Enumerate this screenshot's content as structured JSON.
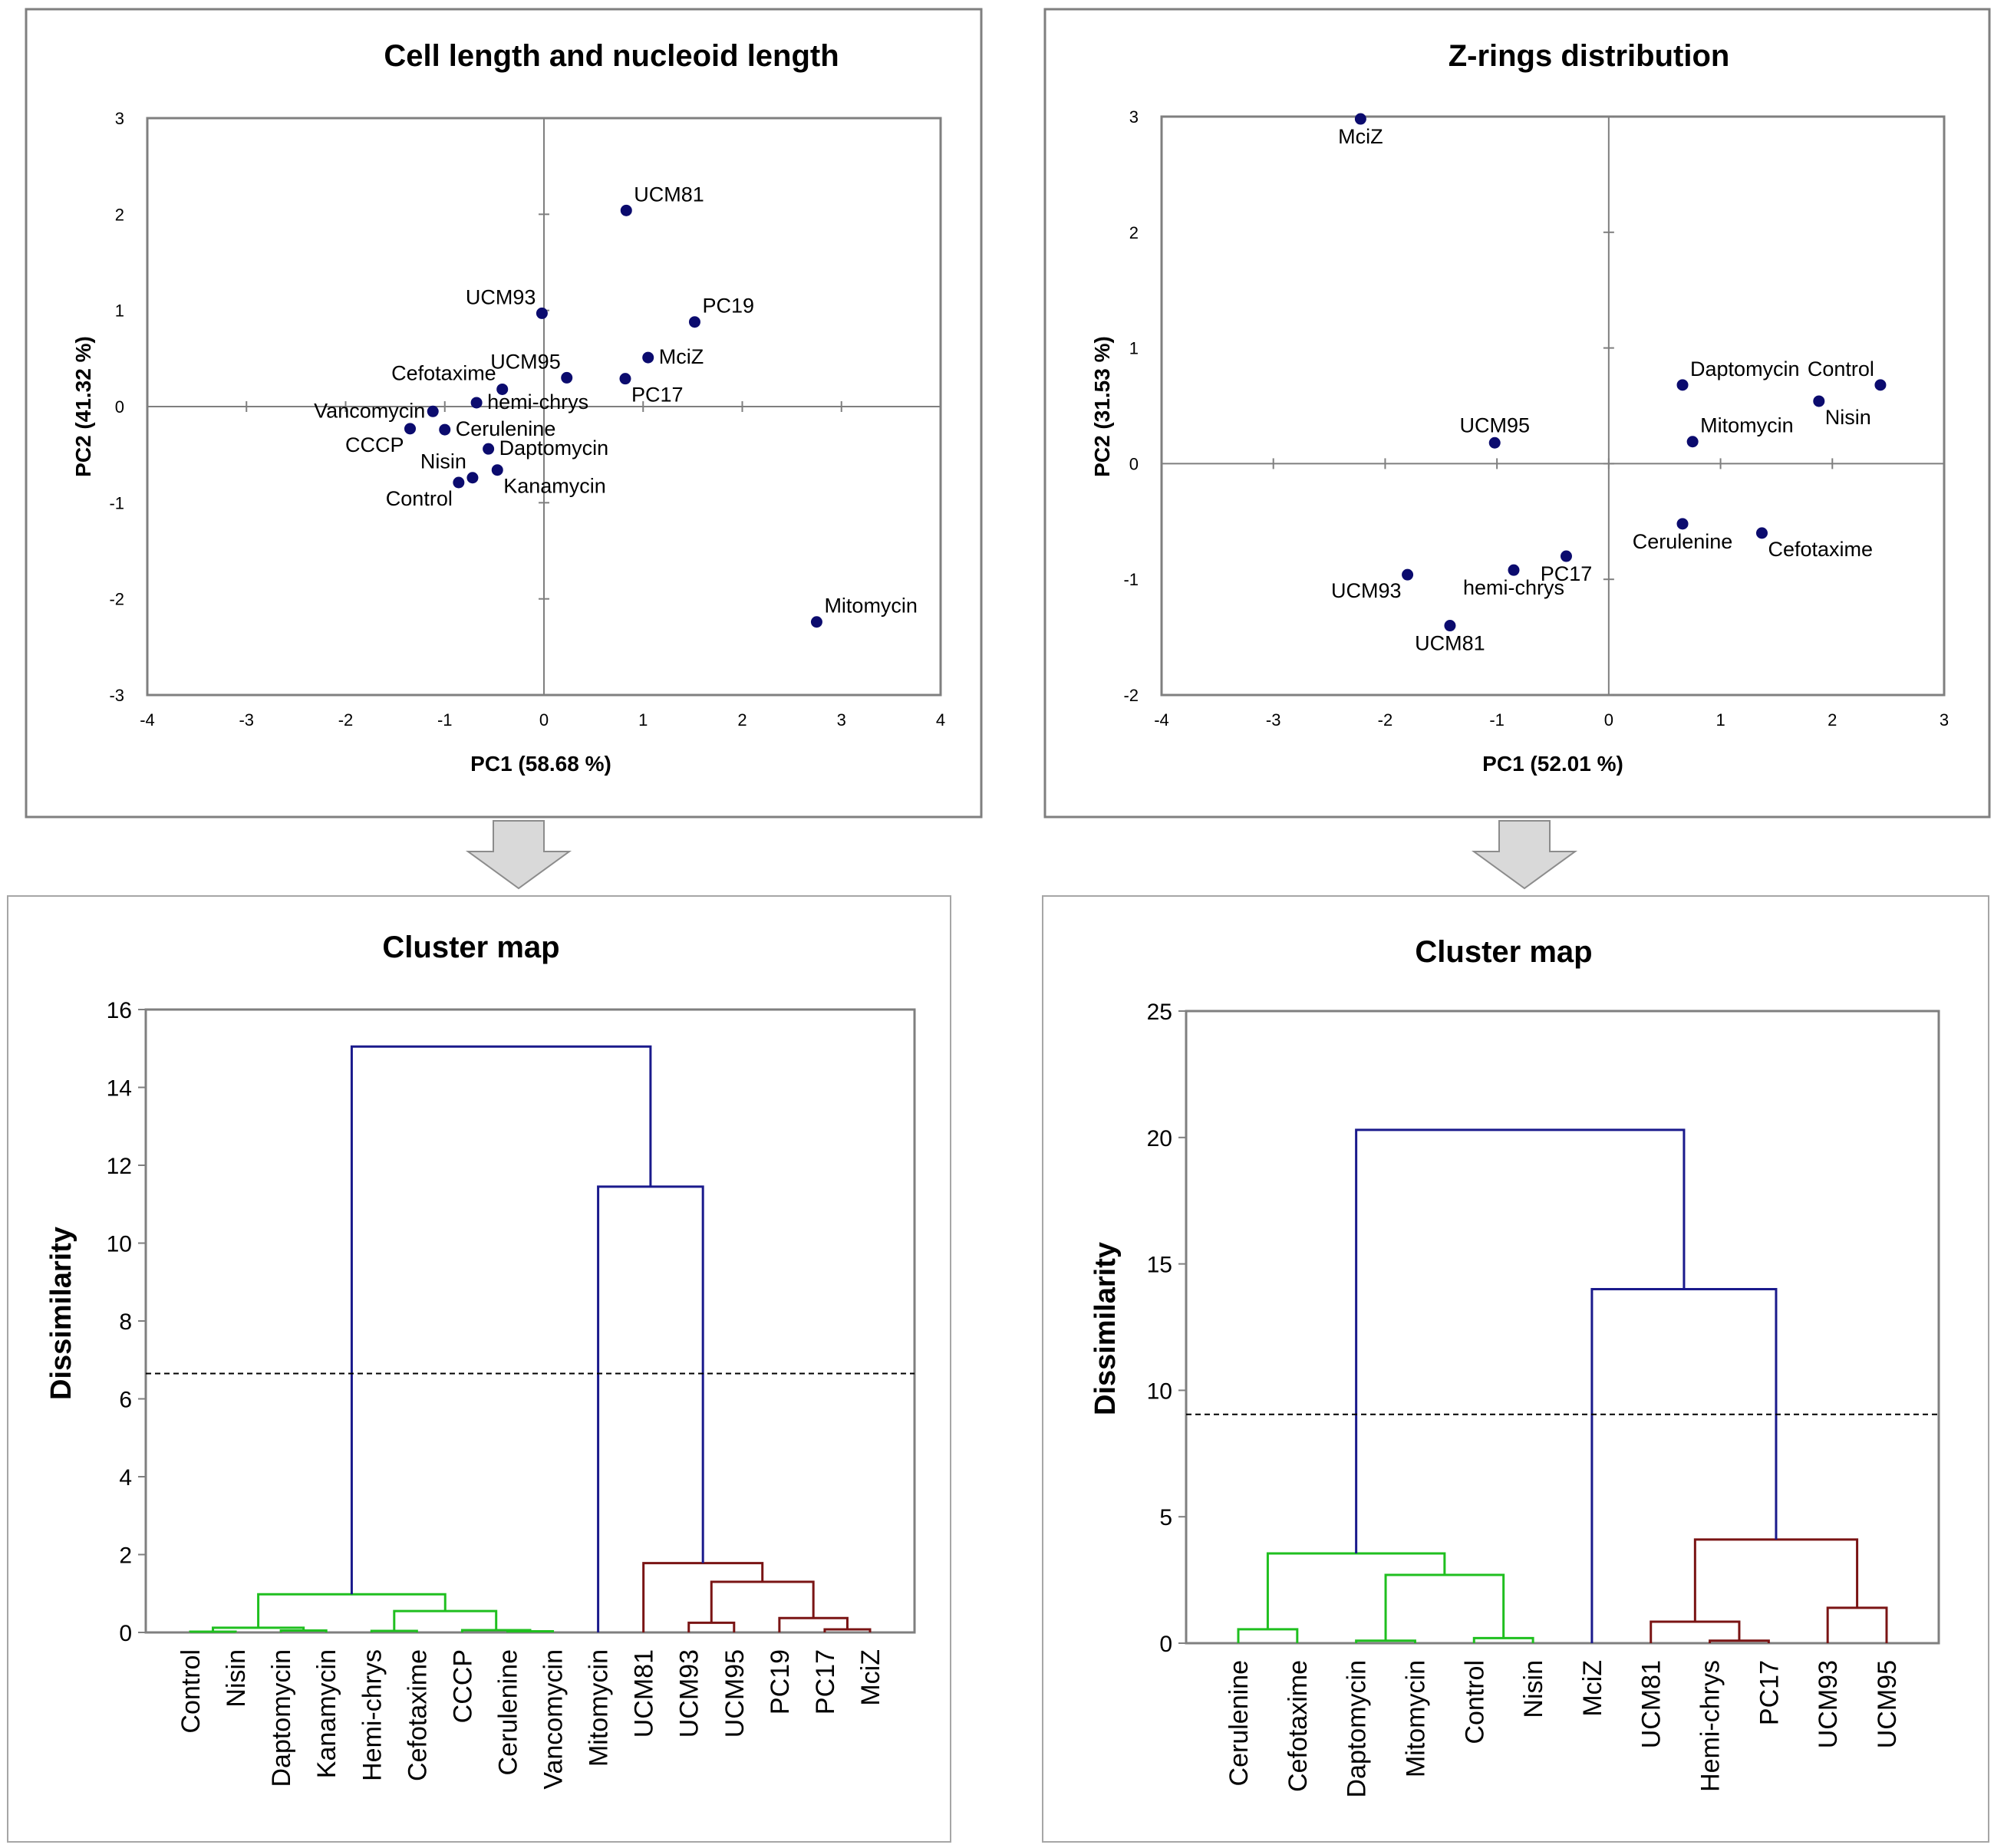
{
  "colors": {
    "point": "#0b0b6e",
    "green": "#1fbf1f",
    "blue": "#1a1a8c",
    "red": "#7a1414",
    "frame": "#7f7f7f",
    "arrow_fill": "#d9d9d9"
  },
  "chart_data": [
    {
      "id": "pcaA",
      "type": "scatter",
      "title": "Cell length and nucleoid length",
      "xlabel": "PC1 (58.68 %)",
      "ylabel": "PC2 (41.32 %)",
      "xlim": [
        -4,
        4
      ],
      "ylim": [
        -3,
        3
      ],
      "xticks": [
        -4,
        -3,
        -2,
        -1,
        0,
        1,
        2,
        3,
        4
      ],
      "yticks": [
        -3,
        -2,
        -1,
        0,
        1,
        2,
        3
      ],
      "points": [
        {
          "name": "UCM81",
          "x": 0.83,
          "y": 2.04,
          "label_pos": "upper-right"
        },
        {
          "name": "UCM93",
          "x": -0.02,
          "y": 0.97,
          "label_pos": "upper-left"
        },
        {
          "name": "PC19",
          "x": 1.52,
          "y": 0.88,
          "label_pos": "upper-right"
        },
        {
          "name": "MciZ",
          "x": 1.05,
          "y": 0.51,
          "label_pos": "right"
        },
        {
          "name": "UCM95",
          "x": 0.23,
          "y": 0.3,
          "label_pos": "upper-left"
        },
        {
          "name": "PC17",
          "x": 0.82,
          "y": 0.29,
          "label_pos": "lower-right"
        },
        {
          "name": "Cefotaxime",
          "x": -0.42,
          "y": 0.18,
          "label_pos": "upper-left"
        },
        {
          "name": "hemi-chrys",
          "x": -0.68,
          "y": 0.04,
          "label_pos": "right"
        },
        {
          "name": "Vancomycin",
          "x": -1.12,
          "y": -0.05,
          "label_pos": "left"
        },
        {
          "name": "CCCP",
          "x": -1.35,
          "y": -0.23,
          "label_pos": "lower-left"
        },
        {
          "name": "Cerulenine",
          "x": -1.0,
          "y": -0.24,
          "label_pos": "right"
        },
        {
          "name": "Daptomycin",
          "x": -0.56,
          "y": -0.44,
          "label_pos": "right"
        },
        {
          "name": "Nisin",
          "x": -0.72,
          "y": -0.74,
          "label_pos": "upper-left"
        },
        {
          "name": "Kanamycin",
          "x": -0.47,
          "y": -0.66,
          "label_pos": "lower-right"
        },
        {
          "name": "Control",
          "x": -0.86,
          "y": -0.79,
          "label_pos": "lower-left"
        },
        {
          "name": "Mitomycin",
          "x": 2.75,
          "y": -2.24,
          "label_pos": "upper-right"
        }
      ]
    },
    {
      "id": "pcaB",
      "type": "scatter",
      "title": "Z-rings distribution",
      "xlabel": "PC1 (52.01 %)",
      "ylabel": "PC2 (31.53 %)",
      "xlim": [
        -4,
        3
      ],
      "ylim": [
        -2,
        3
      ],
      "xticks": [
        -4,
        -3,
        -2,
        -1,
        0,
        1,
        2,
        3
      ],
      "yticks": [
        -2,
        -1,
        0,
        1,
        2,
        3
      ],
      "points": [
        {
          "name": "MciZ",
          "x": -2.22,
          "y": 2.98,
          "label_pos": "below"
        },
        {
          "name": "Daptomycin",
          "x": 0.66,
          "y": 0.68,
          "label_pos": "upper-right"
        },
        {
          "name": "Control",
          "x": 2.43,
          "y": 0.68,
          "label_pos": "upper-left"
        },
        {
          "name": "Nisin",
          "x": 1.88,
          "y": 0.54,
          "label_pos": "lower-right"
        },
        {
          "name": "UCM95",
          "x": -1.02,
          "y": 0.18,
          "label_pos": "above"
        },
        {
          "name": "Mitomycin",
          "x": 0.75,
          "y": 0.19,
          "label_pos": "upper-right"
        },
        {
          "name": "Cerulenine",
          "x": 0.66,
          "y": -0.52,
          "label_pos": "below"
        },
        {
          "name": "Cefotaxime",
          "x": 1.37,
          "y": -0.6,
          "label_pos": "lower-right"
        },
        {
          "name": "PC17",
          "x": -0.38,
          "y": -0.8,
          "label_pos": "below"
        },
        {
          "name": "hemi-chrys",
          "x": -0.85,
          "y": -0.92,
          "label_pos": "below"
        },
        {
          "name": "UCM93",
          "x": -1.8,
          "y": -0.96,
          "label_pos": "lower-left"
        },
        {
          "name": "UCM81",
          "x": -1.42,
          "y": -1.4,
          "label_pos": "below"
        }
      ]
    },
    {
      "id": "dendA",
      "type": "dendrogram",
      "title": "Cluster map",
      "ylabel": "Dissimilarity",
      "ylim": [
        0,
        16
      ],
      "yticks": [
        0,
        2,
        4,
        6,
        8,
        10,
        12,
        14,
        16
      ],
      "truncation_level": 6.65,
      "leaves": [
        "Control",
        "Nisin",
        "Daptomycin",
        "Kanamycin",
        "Hemi-chrys",
        "Cefotaxime",
        "CCCP",
        "Cerulenine",
        "Vancomycin",
        "Mitomycin",
        "UCM81",
        "UCM93",
        "UCM95",
        "PC19",
        "PC17",
        "MciZ"
      ],
      "merges": [
        {
          "a": "Control",
          "b": "Nisin",
          "h": 0.02,
          "color": "green"
        },
        {
          "a": "Daptomycin",
          "b": "Kanamycin",
          "h": 0.05,
          "color": "green"
        },
        {
          "a": 0,
          "b": 1,
          "h": 0.12,
          "color": "green"
        },
        {
          "a": "Hemi-chrys",
          "b": "Cefotaxime",
          "h": 0.04,
          "color": "green"
        },
        {
          "a": "Cerulenine",
          "b": "Vancomycin",
          "h": 0.03,
          "color": "green"
        },
        {
          "a": "CCCP",
          "b": 4,
          "h": 0.06,
          "color": "green"
        },
        {
          "a": 3,
          "b": 5,
          "h": 0.55,
          "color": "green"
        },
        {
          "a": 2,
          "b": 6,
          "h": 0.98,
          "color": "green"
        },
        {
          "a": "PC17",
          "b": "MciZ",
          "h": 0.08,
          "color": "red"
        },
        {
          "a": "PC19",
          "b": 8,
          "h": 0.37,
          "color": "red"
        },
        {
          "a": "UCM93",
          "b": "UCM95",
          "h": 0.25,
          "color": "red"
        },
        {
          "a": 10,
          "b": 9,
          "h": 1.3,
          "color": "red"
        },
        {
          "a": "UCM81",
          "b": 11,
          "h": 1.78,
          "color": "red"
        },
        {
          "a": "Mitomycin",
          "b": 12,
          "h": 11.45,
          "color": "blue"
        },
        {
          "a": 7,
          "b": 13,
          "h": 15.05,
          "color": "blue"
        }
      ]
    },
    {
      "id": "dendB",
      "type": "dendrogram",
      "title": "Cluster map",
      "ylabel": "Dissimilarity",
      "ylim": [
        0,
        25
      ],
      "yticks": [
        0,
        5,
        10,
        15,
        20,
        25
      ],
      "truncation_level": 9.05,
      "leaves": [
        "Cerulenine",
        "Cefotaxime",
        "Daptomycin",
        "Mitomycin",
        "Control",
        "Nisin",
        "MciZ",
        "UCM81",
        "Hemi-chrys",
        "PC17",
        "UCM93",
        "UCM95"
      ],
      "merges": [
        {
          "a": "Cerulenine",
          "b": "Cefotaxime",
          "h": 0.55,
          "color": "green"
        },
        {
          "a": "Daptomycin",
          "b": "Mitomycin",
          "h": 0.1,
          "color": "green"
        },
        {
          "a": "Control",
          "b": "Nisin",
          "h": 0.2,
          "color": "green"
        },
        {
          "a": 1,
          "b": 2,
          "h": 2.7,
          "color": "green"
        },
        {
          "a": 0,
          "b": 3,
          "h": 3.55,
          "color": "green"
        },
        {
          "a": "Hemi-chrys",
          "b": "PC17",
          "h": 0.1,
          "color": "red"
        },
        {
          "a": "UCM81",
          "b": 5,
          "h": 0.85,
          "color": "red"
        },
        {
          "a": "UCM93",
          "b": "UCM95",
          "h": 1.4,
          "color": "red"
        },
        {
          "a": 6,
          "b": 7,
          "h": 4.1,
          "color": "red"
        },
        {
          "a": "MciZ",
          "b": 8,
          "h": 14.0,
          "color": "blue"
        },
        {
          "a": 4,
          "b": 9,
          "h": 20.3,
          "color": "blue"
        }
      ]
    }
  ]
}
